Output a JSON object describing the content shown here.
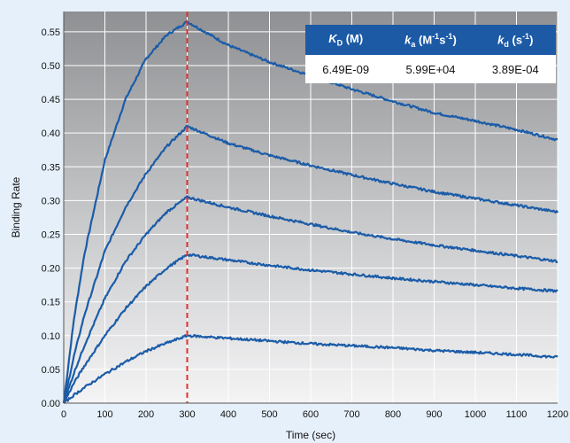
{
  "chart_data": {
    "type": "line",
    "xlabel": "Time (sec)",
    "ylabel": "Binding Rate",
    "xlim": [
      0,
      1200
    ],
    "ylim": [
      0,
      0.58
    ],
    "x_ticks": [
      "0",
      "100",
      "200",
      "300",
      "400",
      "500",
      "600",
      "700",
      "800",
      "900",
      "1000",
      "1100",
      "1200"
    ],
    "y_ticks": [
      "0.00",
      "0.05",
      "0.10",
      "0.15",
      "0.20",
      "0.25",
      "0.30",
      "0.35",
      "0.40",
      "0.45",
      "0.50",
      "0.55"
    ],
    "grid": true,
    "background": "vertical gradient, dark grey top to light grey bottom",
    "injection_end_line": {
      "x": 300,
      "color": "#e0312d",
      "style": "dashed"
    },
    "series_color": "#1b5ca8",
    "series": [
      {
        "x": [
          0,
          25,
          50,
          100,
          150,
          200,
          250,
          300,
          400,
          500,
          600,
          700,
          800,
          900,
          1000,
          1100,
          1200
        ],
        "values": [
          0.0,
          0.125,
          0.22,
          0.36,
          0.45,
          0.51,
          0.545,
          0.565,
          0.53,
          0.505,
          0.485,
          0.465,
          0.447,
          0.43,
          0.418,
          0.405,
          0.39
        ]
      },
      {
        "x": [
          0,
          25,
          50,
          100,
          150,
          200,
          250,
          300,
          400,
          500,
          600,
          700,
          800,
          900,
          1000,
          1100,
          1200
        ],
        "values": [
          0.0,
          0.07,
          0.13,
          0.225,
          0.29,
          0.34,
          0.38,
          0.41,
          0.385,
          0.367,
          0.352,
          0.338,
          0.325,
          0.313,
          0.303,
          0.293,
          0.283
        ]
      },
      {
        "x": [
          0,
          25,
          50,
          100,
          150,
          200,
          250,
          300,
          400,
          500,
          600,
          700,
          800,
          900,
          1000,
          1100,
          1200
        ],
        "values": [
          0.0,
          0.045,
          0.085,
          0.155,
          0.21,
          0.25,
          0.283,
          0.305,
          0.29,
          0.277,
          0.265,
          0.253,
          0.243,
          0.234,
          0.226,
          0.218,
          0.21
        ]
      },
      {
        "x": [
          0,
          25,
          50,
          100,
          150,
          200,
          250,
          300,
          400,
          500,
          600,
          700,
          800,
          900,
          1000,
          1100,
          1200
        ],
        "values": [
          0.0,
          0.03,
          0.055,
          0.1,
          0.14,
          0.173,
          0.2,
          0.22,
          0.212,
          0.204,
          0.197,
          0.191,
          0.185,
          0.18,
          0.175,
          0.17,
          0.166
        ]
      },
      {
        "x": [
          0,
          25,
          50,
          100,
          150,
          200,
          250,
          300,
          400,
          500,
          600,
          700,
          800,
          900,
          1000,
          1100,
          1200
        ],
        "values": [
          0.0,
          0.012,
          0.023,
          0.043,
          0.061,
          0.077,
          0.089,
          0.1,
          0.096,
          0.092,
          0.088,
          0.085,
          0.082,
          0.078,
          0.075,
          0.072,
          0.068
        ]
      }
    ]
  },
  "kinetics_table": {
    "header_color": "#1c5aa6",
    "headers": {
      "kd_symbol": "K",
      "kd_sub": "D",
      "kd_unit": " (M)",
      "ka_symbol": "k",
      "ka_sub": "a",
      "ka_unit_pre": " (M",
      "ka_unit_sup1": "-1",
      "ka_unit_mid": "s",
      "ka_unit_sup2": "-1",
      "ka_unit_post": ")",
      "kdiss_symbol": "k",
      "kdiss_sub": "d",
      "kdiss_unit_pre": " (s",
      "kdiss_unit_sup": "-1",
      "kdiss_unit_post": ")"
    },
    "row": {
      "KD": "6.49E-09",
      "ka": "5.99E+04",
      "kd": "3.89E-04"
    }
  }
}
